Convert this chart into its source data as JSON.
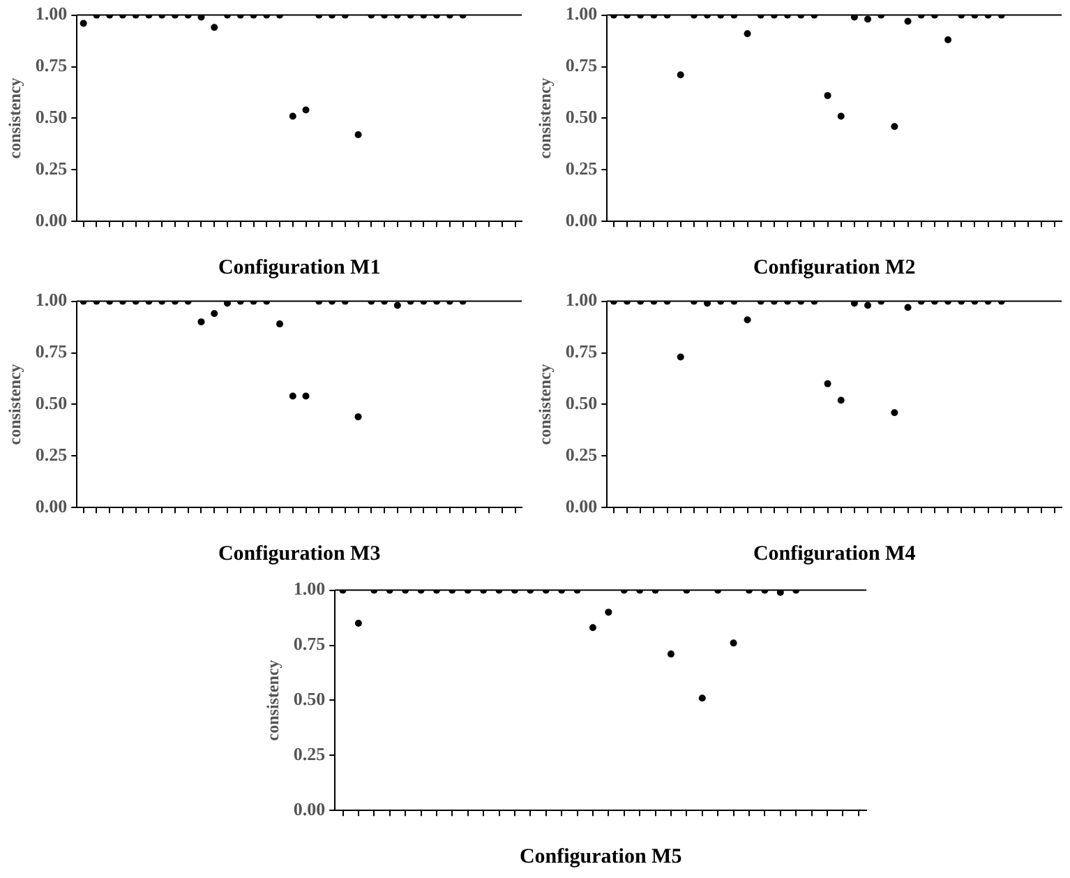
{
  "chart_data": [
    {
      "type": "scatter",
      "xlabel": "Configuration M1",
      "ylabel": "consistency",
      "categories": [
        null,
        null,
        null,
        null,
        null,
        null,
        null,
        null,
        null,
        null,
        null,
        null,
        null,
        null,
        null,
        null,
        null,
        null,
        null,
        null,
        null,
        null,
        null,
        null,
        null,
        null,
        null,
        null,
        null,
        null,
        null,
        null,
        null,
        null
      ],
      "values": [
        0.96,
        1,
        1,
        1,
        1,
        1,
        1,
        1,
        1,
        0.99,
        0.94,
        1,
        1,
        1,
        1,
        1,
        0.51,
        0.54,
        1,
        1,
        1,
        0.42,
        1,
        1,
        1,
        1,
        1,
        1,
        1,
        1,
        null,
        null,
        null,
        null
      ],
      "color": "#000000",
      "marker": "circle",
      "ylim": [
        0,
        1
      ],
      "yticks": [
        {
          "value": 0,
          "label": "0.00"
        },
        {
          "value": 0.25,
          "label": "0.25"
        },
        {
          "value": 0.5,
          "label": "0.50"
        },
        {
          "value": 0.75,
          "label": "0.75"
        },
        {
          "value": 1,
          "label": "1.00"
        }
      ],
      "grid": false,
      "legend": false
    },
    {
      "type": "scatter",
      "xlabel": "Configuration M2",
      "ylabel": "consistency",
      "categories": [
        null,
        null,
        null,
        null,
        null,
        null,
        null,
        null,
        null,
        null,
        null,
        null,
        null,
        null,
        null,
        null,
        null,
        null,
        null,
        null,
        null,
        null,
        null,
        null,
        null,
        null,
        null,
        null,
        null,
        null,
        null,
        null,
        null,
        null
      ],
      "values": [
        1,
        1,
        1,
        1,
        1,
        0.71,
        1,
        1,
        1,
        1,
        0.91,
        1,
        1,
        1,
        1,
        1,
        0.61,
        0.51,
        0.99,
        0.98,
        1,
        0.46,
        0.97,
        1,
        1,
        0.88,
        1,
        1,
        1,
        1,
        null,
        null,
        null,
        null
      ],
      "color": "#000000",
      "marker": "circle",
      "ylim": [
        0,
        1
      ],
      "yticks": [
        {
          "value": 0,
          "label": "0.00"
        },
        {
          "value": 0.25,
          "label": "0.25"
        },
        {
          "value": 0.5,
          "label": "0.50"
        },
        {
          "value": 0.75,
          "label": "0.75"
        },
        {
          "value": 1,
          "label": "1.00"
        }
      ],
      "grid": false,
      "legend": false
    },
    {
      "type": "scatter",
      "xlabel": "Configuration M3",
      "ylabel": "consistency",
      "categories": [
        null,
        null,
        null,
        null,
        null,
        null,
        null,
        null,
        null,
        null,
        null,
        null,
        null,
        null,
        null,
        null,
        null,
        null,
        null,
        null,
        null,
        null,
        null,
        null,
        null,
        null,
        null,
        null,
        null,
        null,
        null,
        null,
        null,
        null
      ],
      "values": [
        1,
        1,
        1,
        1,
        1,
        1,
        1,
        1,
        1,
        0.9,
        0.94,
        0.99,
        1,
        1,
        1,
        0.89,
        0.54,
        0.54,
        1,
        1,
        1,
        0.44,
        1,
        1,
        0.98,
        1,
        1,
        1,
        1,
        1,
        null,
        null,
        null,
        null
      ],
      "color": "#000000",
      "marker": "circle",
      "ylim": [
        0,
        1
      ],
      "yticks": [
        {
          "value": 0,
          "label": "0.00"
        },
        {
          "value": 0.25,
          "label": "0.25"
        },
        {
          "value": 0.5,
          "label": "0.50"
        },
        {
          "value": 0.75,
          "label": "0.75"
        },
        {
          "value": 1,
          "label": "1.00"
        }
      ],
      "grid": false,
      "legend": false
    },
    {
      "type": "scatter",
      "xlabel": "Configuration M4",
      "ylabel": "consistency",
      "categories": [
        null,
        null,
        null,
        null,
        null,
        null,
        null,
        null,
        null,
        null,
        null,
        null,
        null,
        null,
        null,
        null,
        null,
        null,
        null,
        null,
        null,
        null,
        null,
        null,
        null,
        null,
        null,
        null,
        null,
        null,
        null,
        null,
        null,
        null
      ],
      "values": [
        1,
        1,
        1,
        1,
        1,
        0.73,
        1,
        0.99,
        1,
        1,
        0.91,
        1,
        1,
        1,
        1,
        1,
        0.6,
        0.52,
        0.99,
        0.98,
        1,
        0.46,
        0.97,
        1,
        1,
        1,
        1,
        1,
        1,
        1,
        null,
        null,
        null,
        null
      ],
      "color": "#000000",
      "marker": "circle",
      "ylim": [
        0,
        1
      ],
      "yticks": [
        {
          "value": 0,
          "label": "0.00"
        },
        {
          "value": 0.25,
          "label": "0.25"
        },
        {
          "value": 0.5,
          "label": "0.50"
        },
        {
          "value": 0.75,
          "label": "0.75"
        },
        {
          "value": 1,
          "label": "1.00"
        }
      ],
      "grid": false,
      "legend": false
    },
    {
      "type": "scatter",
      "xlabel": "Configuration M5",
      "ylabel": "consistency",
      "categories": [
        null,
        null,
        null,
        null,
        null,
        null,
        null,
        null,
        null,
        null,
        null,
        null,
        null,
        null,
        null,
        null,
        null,
        null,
        null,
        null,
        null,
        null,
        null,
        null,
        null,
        null,
        null,
        null,
        null,
        null,
        null,
        null,
        null,
        null
      ],
      "values": [
        1,
        0.85,
        1,
        1,
        1,
        1,
        1,
        1,
        1,
        1,
        1,
        1,
        1,
        1,
        1,
        1,
        0.83,
        0.9,
        1,
        1,
        1,
        0.71,
        1,
        0.51,
        1,
        0.76,
        1,
        1,
        0.99,
        1,
        null,
        null,
        null,
        null
      ],
      "color": "#000000",
      "marker": "circle",
      "ylim": [
        0,
        1
      ],
      "yticks": [
        {
          "value": 0,
          "label": "0.00"
        },
        {
          "value": 0.25,
          "label": "0.25"
        },
        {
          "value": 0.5,
          "label": "0.50"
        },
        {
          "value": 0.75,
          "label": "0.75"
        },
        {
          "value": 1,
          "label": "1.00"
        }
      ],
      "grid": false,
      "legend": false
    }
  ]
}
